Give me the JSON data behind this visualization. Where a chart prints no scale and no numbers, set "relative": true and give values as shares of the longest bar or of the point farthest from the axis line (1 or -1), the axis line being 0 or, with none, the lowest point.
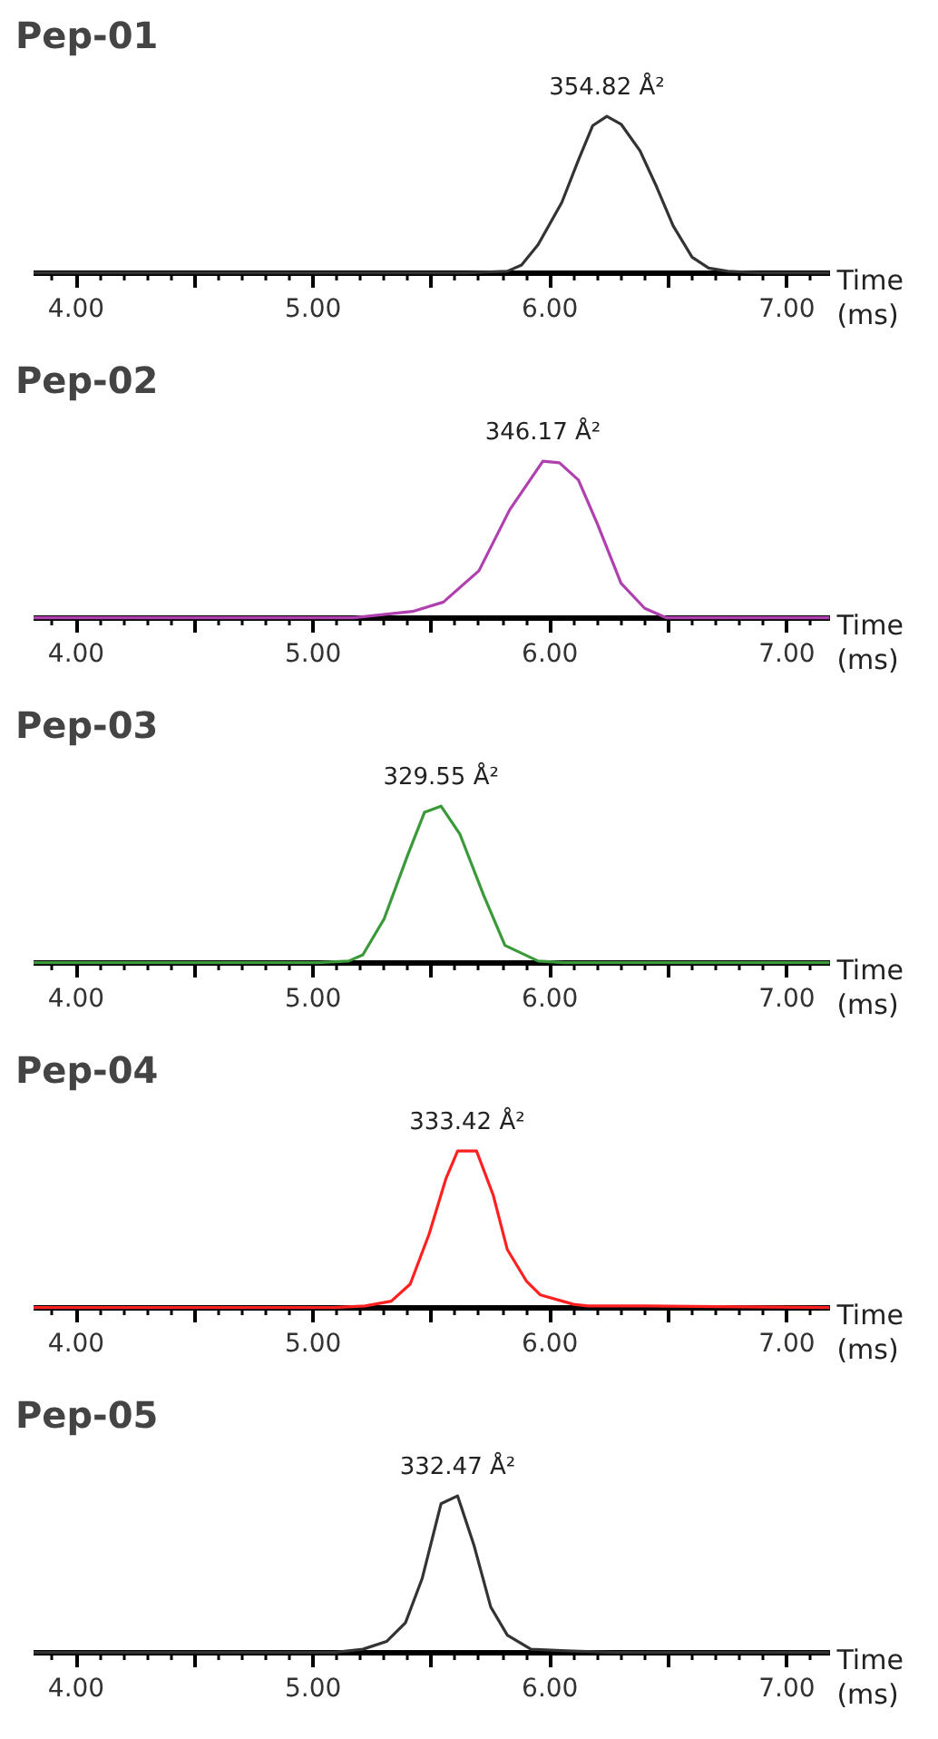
{
  "chart_data": [
    {
      "type": "line",
      "title": "Pep-01",
      "xlabel": "Time (ms)",
      "relative": true,
      "tick_labels": "x",
      "grid": false,
      "xlim": [
        3.82,
        7.18
      ],
      "xticks": [
        {
          "value": 4,
          "label": "4.00"
        },
        {
          "value": 4.5,
          "label": null
        },
        {
          "value": 5,
          "label": "5.00"
        },
        {
          "value": 5.5,
          "label": null
        },
        {
          "value": 6,
          "label": "6.00"
        },
        {
          "value": 6.5,
          "label": null
        },
        {
          "value": 7,
          "label": "7.00"
        }
      ],
      "x": [
        3.82,
        5.65,
        5.82,
        5.88,
        5.95,
        6.05,
        6.12,
        6.18,
        6.24,
        6.3,
        6.38,
        6.45,
        6.52,
        6.6,
        6.67,
        6.75,
        6.88,
        7.18
      ],
      "series": [
        {
          "color": "#333333",
          "values": [
            0,
            0,
            0.01,
            0.05,
            0.18,
            0.45,
            0.72,
            0.94,
            1,
            0.95,
            0.78,
            0.55,
            0.3,
            0.1,
            0.03,
            0.01,
            0,
            0
          ]
        }
      ],
      "annotations": [
        {
          "text": "354.82 Å²",
          "x": 6.24,
          "y": 1
        }
      ]
    },
    {
      "type": "line",
      "title": "Pep-02",
      "xlabel": "Time (ms)",
      "relative": true,
      "tick_labels": "x",
      "grid": false,
      "xlim": [
        3.82,
        7.18
      ],
      "xticks": [
        {
          "value": 4,
          "label": "4.00"
        },
        {
          "value": 4.5,
          "label": null
        },
        {
          "value": 5,
          "label": "5.00"
        },
        {
          "value": 5.5,
          "label": null
        },
        {
          "value": 6,
          "label": "6.00"
        },
        {
          "value": 6.5,
          "label": null
        },
        {
          "value": 7,
          "label": "7.00"
        }
      ],
      "x": [
        3.82,
        5.17,
        5.42,
        5.55,
        5.7,
        5.83,
        5.97,
        6.04,
        6.12,
        6.2,
        6.3,
        6.4,
        6.49,
        7.18
      ],
      "series": [
        {
          "color": "#b040b0",
          "values": [
            0,
            0,
            0.04,
            0.1,
            0.3,
            0.69,
            1,
            0.99,
            0.88,
            0.6,
            0.22,
            0.06,
            0,
            0
          ]
        }
      ],
      "annotations": [
        {
          "text": "346.17 Å²",
          "x": 5.97,
          "y": 1
        }
      ]
    },
    {
      "type": "line",
      "title": "Pep-03",
      "xlabel": "Time (ms)",
      "relative": true,
      "tick_labels": "x",
      "grid": false,
      "xlim": [
        3.82,
        7.18
      ],
      "xticks": [
        {
          "value": 4,
          "label": "4.00"
        },
        {
          "value": 4.5,
          "label": null
        },
        {
          "value": 5,
          "label": "5.00"
        },
        {
          "value": 5.5,
          "label": null
        },
        {
          "value": 6,
          "label": "6.00"
        },
        {
          "value": 6.5,
          "label": null
        },
        {
          "value": 7,
          "label": "7.00"
        }
      ],
      "x": [
        3.82,
        5.02,
        5.15,
        5.21,
        5.3,
        5.4,
        5.47,
        5.54,
        5.62,
        5.72,
        5.81,
        5.95,
        6.06,
        7.18
      ],
      "series": [
        {
          "color": "#3a9a3a",
          "values": [
            0,
            0,
            0.01,
            0.05,
            0.28,
            0.69,
            0.96,
            1,
            0.82,
            0.43,
            0.11,
            0.01,
            0,
            0
          ]
        }
      ],
      "annotations": [
        {
          "text": "329.55 Å²",
          "x": 5.54,
          "y": 1
        }
      ]
    },
    {
      "type": "line",
      "title": "Pep-04",
      "xlabel": "Time (ms)",
      "relative": true,
      "tick_labels": "x",
      "grid": false,
      "xlim": [
        3.82,
        7.18
      ],
      "xticks": [
        {
          "value": 4,
          "label": "4.00"
        },
        {
          "value": 4.5,
          "label": null
        },
        {
          "value": 5,
          "label": "5.00"
        },
        {
          "value": 5.5,
          "label": null
        },
        {
          "value": 6,
          "label": "6.00"
        },
        {
          "value": 6.5,
          "label": null
        },
        {
          "value": 7,
          "label": "7.00"
        }
      ],
      "x": [
        3.82,
        5.09,
        5.22,
        5.33,
        5.41,
        5.49,
        5.56,
        5.61,
        5.69,
        5.76,
        5.82,
        5.9,
        5.96,
        6.1,
        6.16,
        6.41,
        7.18
      ],
      "series": [
        {
          "color": "#ff2020",
          "values": [
            0,
            0,
            0.01,
            0.04,
            0.15,
            0.47,
            0.82,
            1,
            1,
            0.72,
            0.37,
            0.17,
            0.08,
            0.02,
            0.01,
            0.01,
            0
          ]
        }
      ],
      "annotations": [
        {
          "text": "333.42 Å²",
          "x": 5.65,
          "y": 1
        }
      ]
    },
    {
      "type": "line",
      "title": "Pep-05",
      "xlabel": "Time (ms)",
      "relative": true,
      "tick_labels": "x",
      "grid": false,
      "xlim": [
        3.82,
        7.18
      ],
      "xticks": [
        {
          "value": 4,
          "label": "4.00"
        },
        {
          "value": 4.5,
          "label": null
        },
        {
          "value": 5,
          "label": "5.00"
        },
        {
          "value": 5.5,
          "label": null
        },
        {
          "value": 6,
          "label": "6.00"
        },
        {
          "value": 6.5,
          "label": null
        },
        {
          "value": 7,
          "label": "7.00"
        }
      ],
      "x": [
        3.82,
        5.09,
        5.21,
        5.31,
        5.39,
        5.46,
        5.54,
        5.61,
        5.68,
        5.75,
        5.82,
        5.92,
        6.07,
        6.27,
        7.18
      ],
      "series": [
        {
          "color": "#333333",
          "values": [
            0,
            0,
            0.02,
            0.07,
            0.19,
            0.47,
            0.95,
            1,
            0.68,
            0.29,
            0.11,
            0.02,
            0.01,
            0,
            0
          ]
        }
      ],
      "annotations": [
        {
          "text": "332.47 Å²",
          "x": 5.61,
          "y": 1
        }
      ]
    }
  ]
}
